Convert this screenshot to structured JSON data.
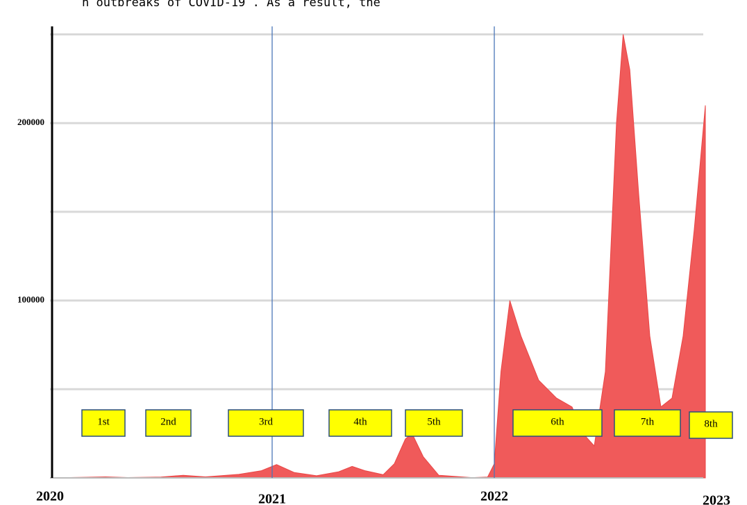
{
  "chart_data": {
    "type": "area",
    "title": "h outbreaks of COVID-19 . As a result, the",
    "x": [
      2020.0,
      2020.25,
      2020.35,
      2020.5,
      2020.6,
      2020.7,
      2020.85,
      2020.95,
      2021.02,
      2021.1,
      2021.2,
      2021.3,
      2021.36,
      2021.42,
      2021.5,
      2021.55,
      2021.6,
      2021.63,
      2021.68,
      2021.75,
      2021.9,
      2021.97,
      2022.0,
      2022.03,
      2022.07,
      2022.12,
      2022.2,
      2022.28,
      2022.35,
      2022.4,
      2022.45,
      2022.5,
      2022.55,
      2022.58,
      2022.61,
      2022.65,
      2022.7,
      2022.75,
      2022.8,
      2022.85,
      2022.9,
      2022.95
    ],
    "values": [
      0,
      600,
      200,
      500,
      1500,
      600,
      2000,
      4000,
      7500,
      3000,
      1200,
      3500,
      6500,
      4000,
      1800,
      8000,
      22000,
      25000,
      12000,
      1500,
      150,
      500,
      8000,
      60000,
      100000,
      80000,
      55000,
      45000,
      40000,
      25000,
      18000,
      60000,
      200000,
      250000,
      230000,
      160000,
      80000,
      40000,
      45000,
      80000,
      140000,
      210000
    ],
    "color": "#f05a5a",
    "xlim": [
      2020,
      2023
    ],
    "xticks": [
      2020,
      2021,
      2022,
      2023
    ],
    "ylim": [
      0,
      260000
    ],
    "yticks": [
      100000,
      200000
    ],
    "grid_lines": [
      50000,
      100000,
      150000,
      200000,
      250000
    ],
    "vertical_lines": [
      2021,
      2022
    ],
    "annotations": [
      "1st",
      "2nd",
      "3rd",
      "4th",
      "5th",
      "6th",
      "7th",
      "8th"
    ]
  }
}
